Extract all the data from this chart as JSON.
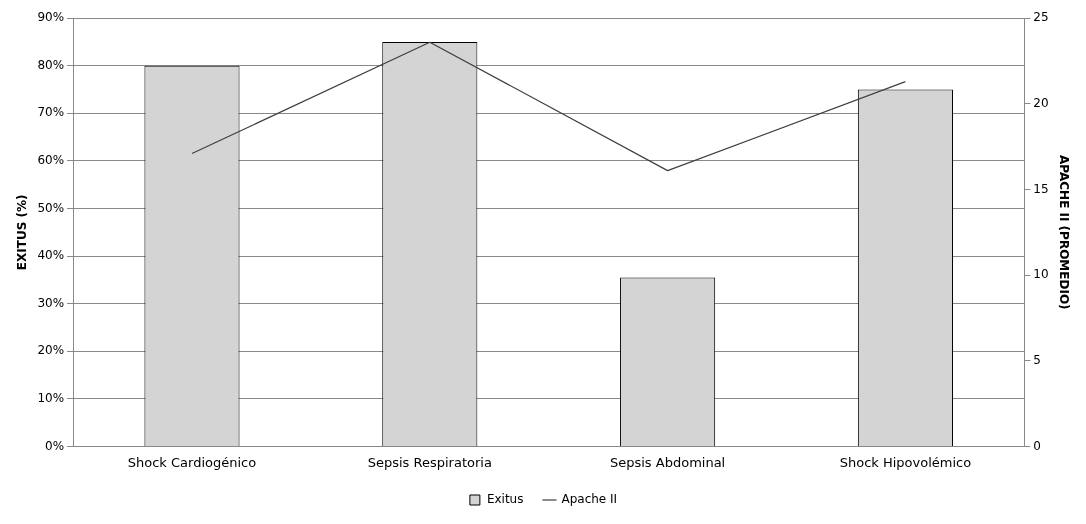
{
  "chart_data": {
    "type": "bar",
    "categories": [
      "Shock Cardiogénico",
      "Sepsis Respiratoria",
      "Sepsis Abdominal",
      "Shock Hipovolémico"
    ],
    "series": [
      {
        "name": "Exitus",
        "color": "#d4d4d4",
        "values": [
          80,
          85,
          35.5,
          75
        ]
      },
      {
        "name": "Apache II",
        "type": "line",
        "axis": "y2",
        "color": "#404040",
        "values": [
          17.1,
          23.6,
          16.1,
          21.3
        ]
      }
    ],
    "ylabel": "EXITUS (%)",
    "y2label": "APACHE II (PROMEDIO)",
    "ylim": [
      0,
      90
    ],
    "yticks": [
      {
        "value": 0,
        "label": "0%"
      },
      {
        "value": 10,
        "label": "10%"
      },
      {
        "value": 20,
        "label": "20%"
      },
      {
        "value": 30,
        "label": "30%"
      },
      {
        "value": 40,
        "label": "40%"
      },
      {
        "value": 50,
        "label": "50%"
      },
      {
        "value": 60,
        "label": "60%"
      },
      {
        "value": 70,
        "label": "70%"
      },
      {
        "value": 80,
        "label": "80%"
      },
      {
        "value": 90,
        "label": "90%"
      }
    ],
    "y2lim": [
      0,
      25
    ],
    "y2ticks": [
      0,
      5,
      10,
      15,
      20,
      25
    ],
    "grid": "y",
    "legend": "bottom",
    "marker": "none"
  }
}
